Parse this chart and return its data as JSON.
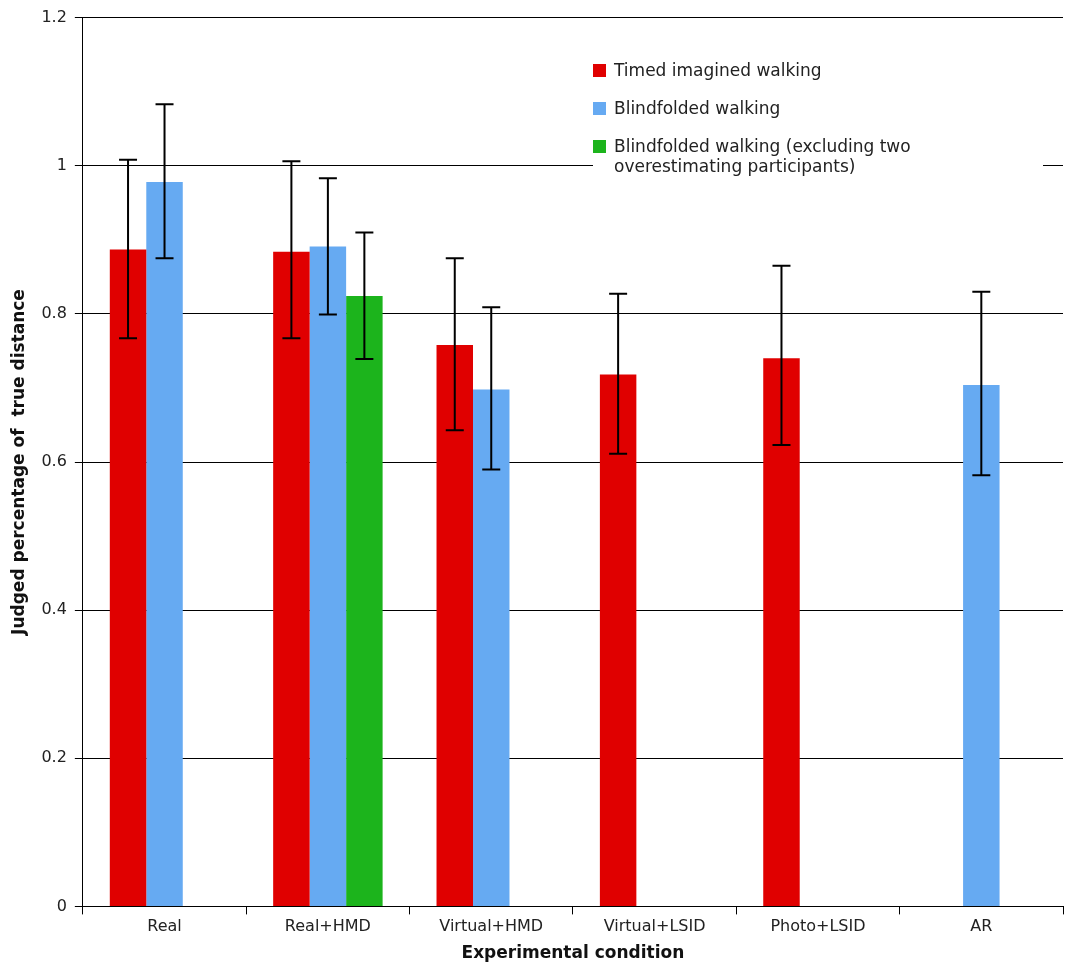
{
  "chart_data": {
    "type": "bar",
    "xlabel": "Experimental condition",
    "ylabel": "Judged percentage of  true distance",
    "categories": [
      "Real",
      "Real+HMD",
      "Virtual+HMD",
      "Virtual+LSID",
      "Photo+LSID",
      "AR"
    ],
    "series": [
      {
        "name": "Timed imagined walking",
        "color": "#e00000",
        "values": [
          0.887,
          0.884,
          0.758,
          0.718,
          0.74,
          null
        ],
        "errors": [
          [
            0.767,
            1.008
          ],
          [
            0.767,
            1.006
          ],
          [
            0.643,
            0.875
          ],
          [
            0.611,
            0.827
          ],
          [
            0.623,
            0.865
          ],
          null
        ]
      },
      {
        "name": "Blindfolded walking",
        "color": "#66aaf2",
        "values": [
          0.978,
          0.891,
          0.698,
          null,
          null,
          0.704
        ],
        "errors": [
          [
            0.875,
            1.083
          ],
          [
            0.799,
            0.983
          ],
          [
            0.59,
            0.809
          ],
          null,
          null,
          [
            0.582,
            0.83
          ]
        ]
      },
      {
        "name": "Blindfolded walking (excluding two overestimating participants)",
        "color": "#1cb41c",
        "values": [
          null,
          0.824,
          null,
          null,
          null,
          null
        ],
        "errors": [
          null,
          [
            0.739,
            0.91
          ],
          null,
          null,
          null,
          null
        ]
      }
    ],
    "ylim": [
      0,
      1.2
    ],
    "yticks": [
      0,
      0.2,
      0.4,
      0.6,
      0.8,
      1,
      1.2
    ],
    "grid": "y",
    "legend": "top right"
  }
}
